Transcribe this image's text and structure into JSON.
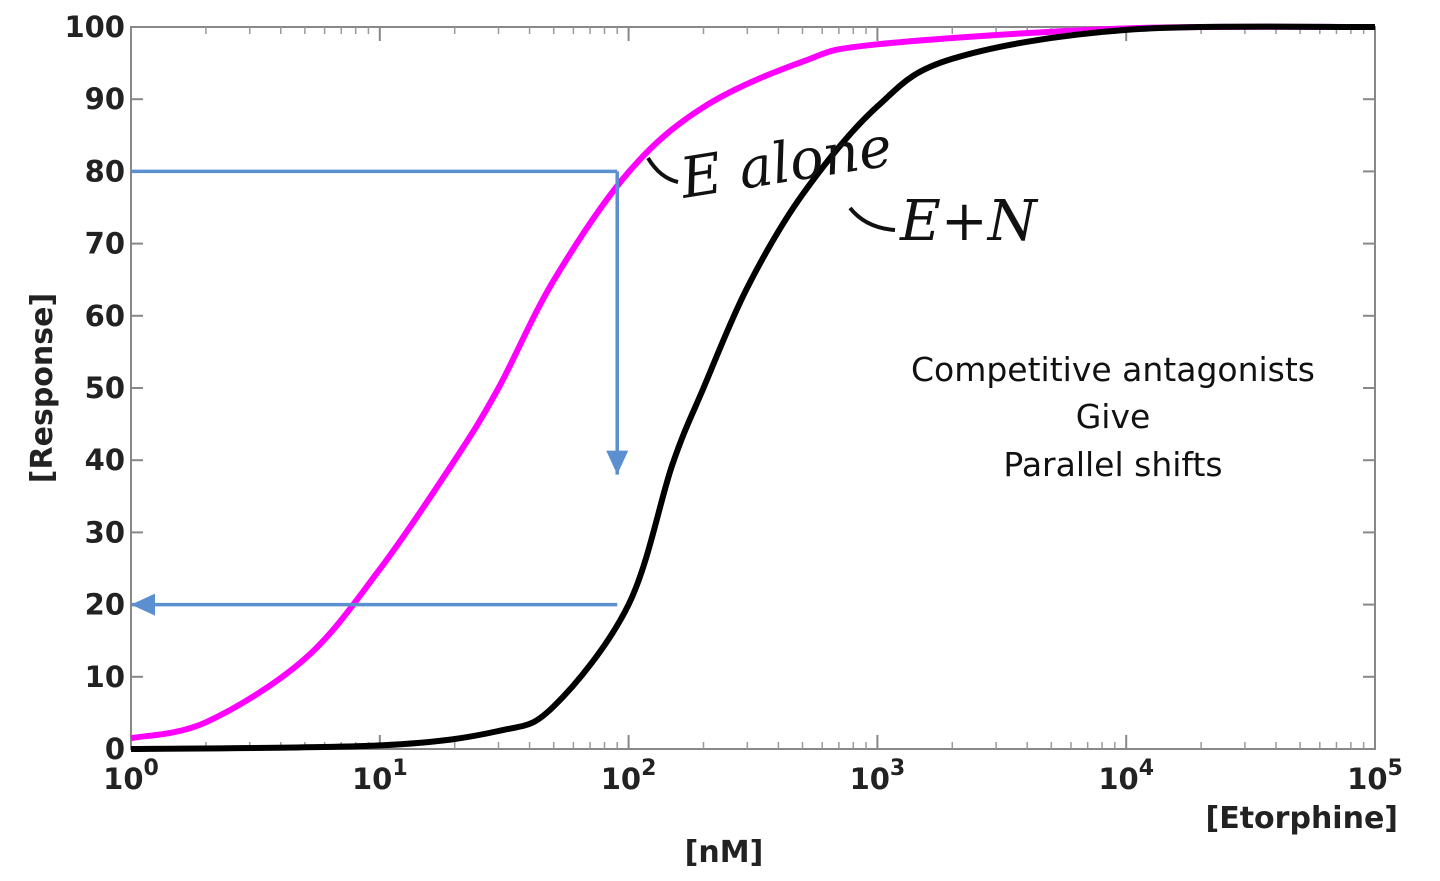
{
  "chart_data": {
    "type": "line",
    "x_scale": "log10",
    "xlim": [
      1,
      100000
    ],
    "ylim": [
      0,
      100
    ],
    "x_ticks": [
      {
        "value": 1,
        "base": "10",
        "exp": "0"
      },
      {
        "value": 10,
        "base": "10",
        "exp": "1"
      },
      {
        "value": 100,
        "base": "10",
        "exp": "2"
      },
      {
        "value": 1000,
        "base": "10",
        "exp": "3"
      },
      {
        "value": 10000,
        "base": "10",
        "exp": "4"
      },
      {
        "value": 100000,
        "base": "10",
        "exp": "5"
      }
    ],
    "y_ticks": [
      0,
      10,
      20,
      30,
      40,
      50,
      60,
      70,
      80,
      90,
      100
    ],
    "xlabel": "[nM]",
    "xlabel_secondary": "[Etorphine]",
    "ylabel": "[Response]",
    "series": [
      {
        "name": "E alone",
        "color": "#ff00ff",
        "x": [
          1,
          2,
          5,
          10,
          20,
          30,
          50,
          100,
          200,
          500,
          1000,
          10000,
          100000
        ],
        "values": [
          1.5,
          3.7,
          12.5,
          24.9,
          40,
          50,
          64.9,
          79.9,
          88.9,
          95.2,
          97.6,
          99.8,
          100
        ]
      },
      {
        "name": "E+N",
        "color": "#000000",
        "x": [
          1,
          10,
          30,
          50,
          100,
          150,
          200,
          300,
          500,
          1000,
          2000,
          10000,
          100000
        ],
        "values": [
          0,
          0.5,
          2.5,
          5.9,
          20,
          39.4,
          50,
          63.9,
          76.8,
          89,
          95.6,
          99.6,
          100
        ]
      }
    ],
    "annotations": {
      "label_e_alone": "E alone",
      "label_e_n": "E+N",
      "note_lines": [
        "Competitive antagonists",
        "Give",
        "Parallel shifts"
      ],
      "arrow_color": "#5b8fd0",
      "arrows": [
        {
          "from": [
            1,
            80
          ],
          "to": [
            90,
            80
          ],
          "head": false
        },
        {
          "from": [
            90,
            80
          ],
          "to": [
            90,
            38
          ],
          "head": true
        },
        {
          "from": [
            90,
            20
          ],
          "to": [
            1,
            20
          ],
          "head": true
        }
      ]
    },
    "grid": false
  }
}
